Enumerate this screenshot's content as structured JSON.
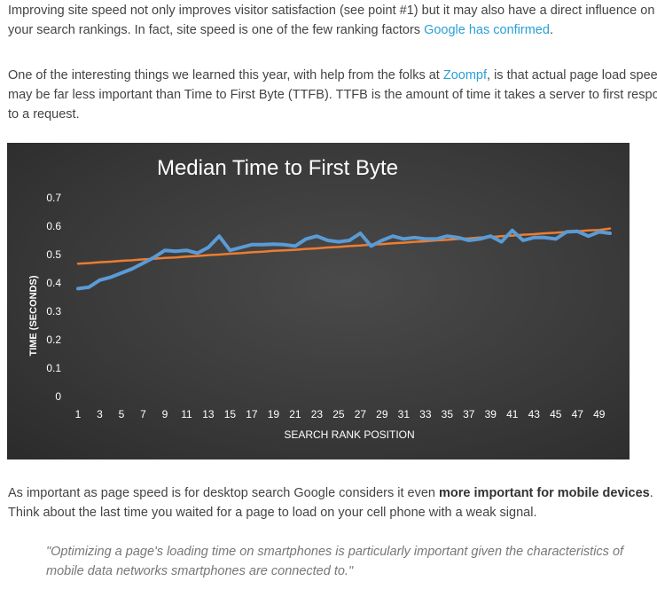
{
  "article": {
    "p1": {
      "line1": "Improving site speed not only improves visitor satisfaction (see point #1) but it may also have a direct influence on",
      "line2_before": "your search rankings. In fact, site speed is one of the few ranking factors ",
      "line2_link": "Google has confirmed",
      "line2_after": "."
    },
    "p2": {
      "line1_before": "One of the interesting things we learned this year, with help from the folks at ",
      "line1_link": "Zoompf",
      "line1_after": ", is that actual page load speed",
      "line2": "may be far less important than Time to First Byte (TTFB). TTFB is the amount of time it takes a server to first respond",
      "line3": "to a request."
    },
    "p4": {
      "line1_before": "As important as page speed is for desktop search Google considers it even ",
      "line1_bold": "more important for mobile devices",
      "line1_after": ".",
      "line2": "Think about the last time you waited for a page to load on your cell phone with a weak signal."
    },
    "quote": {
      "line1": "\"Optimizing a page's loading time on smartphones is particularly important given the characteristics of",
      "line2": "mobile data networks smartphones are connected to.\""
    },
    "colors": {
      "text": "#444444",
      "link": "#2a9fd6",
      "quote": "#777777",
      "chart_bg": "#3a3a3a",
      "series_line": "#5b9bd5",
      "trend_line": "#ed7d31"
    }
  },
  "chart_data": {
    "type": "line",
    "title": "Median Time to First Byte",
    "xlabel": "SEARCH RANK POSITION",
    "ylabel": "TIME (SECONDS)",
    "ylim": [
      0,
      0.7
    ],
    "y_ticks": [
      "0",
      "0.1",
      "0.2",
      "0.3",
      "0.4",
      "0.5",
      "0.6",
      "0.7"
    ],
    "x_ticks": [
      "1",
      "3",
      "5",
      "7",
      "9",
      "11",
      "13",
      "15",
      "17",
      "19",
      "21",
      "23",
      "25",
      "27",
      "29",
      "31",
      "33",
      "35",
      "37",
      "39",
      "41",
      "43",
      "45",
      "47",
      "49"
    ],
    "grid": false,
    "x": [
      1,
      2,
      3,
      4,
      5,
      6,
      7,
      8,
      9,
      10,
      11,
      12,
      13,
      14,
      15,
      16,
      17,
      18,
      19,
      20,
      21,
      22,
      23,
      24,
      25,
      26,
      27,
      28,
      29,
      30,
      31,
      32,
      33,
      34,
      35,
      36,
      37,
      38,
      39,
      40,
      41,
      42,
      43,
      44,
      45,
      46,
      47,
      48,
      49,
      50
    ],
    "series": [
      {
        "values": [
          0.38,
          0.385,
          0.41,
          0.42,
          0.435,
          0.45,
          0.47,
          0.49,
          0.515,
          0.512,
          0.515,
          0.505,
          0.525,
          0.565,
          0.515,
          0.525,
          0.535,
          0.535,
          0.537,
          0.535,
          0.53,
          0.555,
          0.565,
          0.55,
          0.545,
          0.55,
          0.575,
          0.53,
          0.55,
          0.565,
          0.555,
          0.56,
          0.555,
          0.555,
          0.565,
          0.56,
          0.55,
          0.555,
          0.565,
          0.545,
          0.585,
          0.55,
          0.56,
          0.56,
          0.555,
          0.58,
          0.582,
          0.565,
          0.58,
          0.575
        ],
        "color": "#5b9bd5"
      },
      {
        "values": [
          0.468,
          0.47,
          0.473,
          0.475,
          0.478,
          0.48,
          0.483,
          0.485,
          0.488,
          0.49,
          0.493,
          0.495,
          0.498,
          0.5,
          0.503,
          0.505,
          0.508,
          0.51,
          0.513,
          0.515,
          0.517,
          0.52,
          0.522,
          0.525,
          0.527,
          0.53,
          0.532,
          0.535,
          0.537,
          0.54,
          0.542,
          0.545,
          0.547,
          0.55,
          0.552,
          0.555,
          0.557,
          0.56,
          0.562,
          0.565,
          0.567,
          0.57,
          0.572,
          0.575,
          0.577,
          0.58,
          0.582,
          0.585,
          0.587,
          0.592
        ],
        "color": "#ed7d31"
      }
    ]
  }
}
